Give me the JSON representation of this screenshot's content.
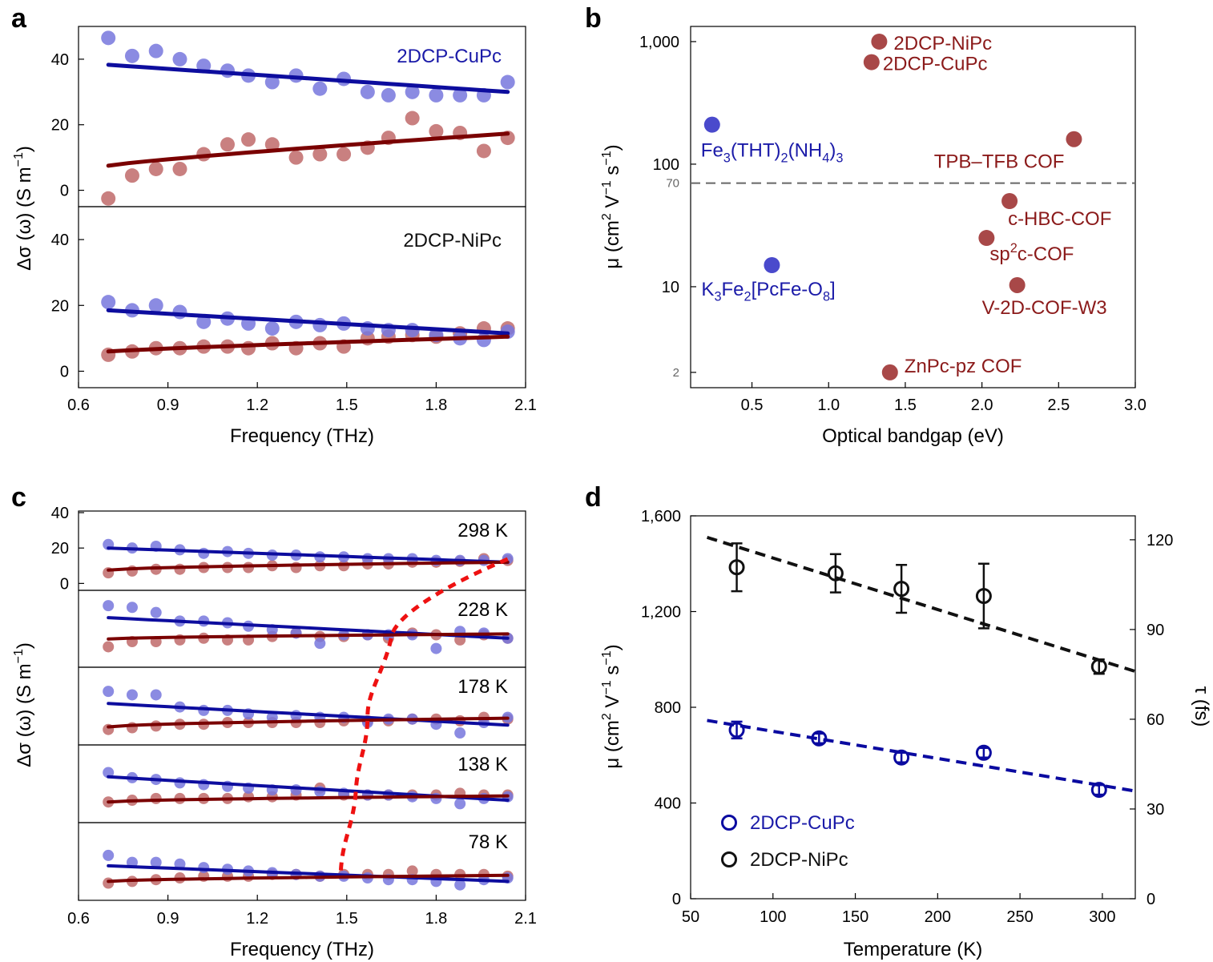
{
  "colors": {
    "blue_line": "#0d0d9e",
    "blue_dot": "#7777dd",
    "red_line": "#7a0000",
    "red_dot": "#c06a6a",
    "blue_text": "#1a1aa8",
    "red_text": "#8b1a1a",
    "dashed_red": "#ee1111",
    "dashed_gray": "#666666",
    "dashed_blue": "#0a0aa0",
    "black": "#111111"
  },
  "chart_data": [
    {
      "panel": "a",
      "type": "scatter",
      "xlabel": "Frequency (THz)",
      "ylabel_main": "Δσ (ω) (S m",
      "ylabel_sup": "−1",
      "ylabel_close": ")",
      "xlim": [
        0.6,
        2.1
      ],
      "xticks": [
        "0.6",
        "0.9",
        "1.2",
        "1.5",
        "1.8",
        "2.1"
      ],
      "x": [
        0.7,
        0.78,
        0.86,
        0.94,
        1.02,
        1.1,
        1.17,
        1.25,
        1.33,
        1.41,
        1.49,
        1.57,
        1.64,
        1.72,
        1.8,
        1.88,
        1.96,
        2.04
      ],
      "subplots": [
        {
          "label": "2DCP-CuPc",
          "ylim": [
            -5,
            50
          ],
          "yticks": [
            "0",
            "20",
            "40"
          ],
          "series": [
            {
              "name": "real",
              "color": "blue",
              "values": [
                46.5,
                41,
                42.5,
                40,
                38,
                36.5,
                35,
                33,
                35,
                31,
                34,
                30,
                29,
                30,
                29,
                29,
                29,
                33
              ],
              "fit": [
                38.3,
                30.0
              ]
            },
            {
              "name": "imaginary",
              "color": "red",
              "values": [
                -2.5,
                4.5,
                6.5,
                6.5,
                11,
                14,
                15.5,
                14,
                10,
                11,
                11,
                13,
                16,
                22,
                18,
                17.5,
                12,
                16
              ],
              "fit": [
                7.5,
                17.3
              ]
            }
          ]
        },
        {
          "label": "2DCP-NiPc",
          "ylim": [
            -5,
            50
          ],
          "yticks": [
            "0",
            "20",
            "40"
          ],
          "series": [
            {
              "name": "real",
              "color": "blue",
              "values": [
                21,
                18.5,
                20,
                18,
                15,
                16,
                14.5,
                13,
                15,
                14,
                14.5,
                13,
                12.5,
                12.5,
                11,
                10,
                9.5,
                12
              ],
              "fit": [
                18.5,
                11.5
              ]
            },
            {
              "name": "imaginary",
              "color": "red",
              "values": [
                5,
                6,
                7,
                7,
                7.5,
                7.5,
                7,
                8.5,
                7,
                8.5,
                7.5,
                10,
                10.5,
                11,
                10.5,
                11.5,
                13,
                13
              ],
              "fit": [
                6.0,
                10.5
              ]
            }
          ]
        }
      ]
    },
    {
      "panel": "b",
      "type": "scatter",
      "xlabel": "Optical bandgap (eV)",
      "ylabel_main": "μ (cm",
      "ylabel_rest": " V",
      "ylabel_rest2": " s",
      "ylabel_close": ")",
      "xlim": [
        0.1,
        3.0
      ],
      "xticks": [
        "0.5",
        "1.0",
        "1.5",
        "2.0",
        "2.5",
        "3.0"
      ],
      "yscale": "log",
      "ylim": [
        1.5,
        1500
      ],
      "yticks": [
        "2",
        "10",
        "70",
        "100",
        "1,000"
      ],
      "threshold": 70,
      "points": [
        {
          "x": 1.33,
          "y": 1000,
          "label": "2DCP-NiPc",
          "color": "red"
        },
        {
          "x": 1.28,
          "y": 680,
          "label": "2DCP-CuPc",
          "color": "red"
        },
        {
          "x": 0.24,
          "y": 210,
          "label_main": "Fe",
          "label_parts": [
            "Fe",
            "3",
            "(THT)",
            "2",
            "(NH",
            "4",
            ")",
            "3"
          ],
          "color": "blue"
        },
        {
          "x": 2.6,
          "y": 160,
          "label": "TPB–TFB  COF",
          "color": "red"
        },
        {
          "x": 2.18,
          "y": 50,
          "label": "c-HBC-COF",
          "color": "red"
        },
        {
          "x": 2.03,
          "y": 25,
          "label_parts": [
            "sp",
            "2",
            "c-COF"
          ],
          "color": "red"
        },
        {
          "x": 0.63,
          "y": 15,
          "label_parts": [
            "K",
            "3",
            "Fe",
            "2",
            "[PcFe-O",
            "8",
            "]"
          ],
          "color": "blue"
        },
        {
          "x": 2.23,
          "y": 10.3,
          "label": "V-2D-COF-W3",
          "color": "red"
        },
        {
          "x": 1.4,
          "y": 2.0,
          "label": "ZnPc-pz COF",
          "color": "red"
        }
      ]
    },
    {
      "panel": "c",
      "type": "scatter",
      "xlabel": "Frequency (THz)",
      "ylabel_main": "Δσ (ω) (S m",
      "ylabel_sup": "−1",
      "ylabel_close": ")",
      "xlim": [
        0.6,
        2.1
      ],
      "xticks": [
        "0.6",
        "0.9",
        "1.2",
        "1.5",
        "1.8",
        "2.1"
      ],
      "yticks_top": [
        "0",
        "20",
        "40"
      ],
      "ylim": [
        -3,
        40
      ],
      "x": [
        0.7,
        0.78,
        0.86,
        0.94,
        1.02,
        1.1,
        1.17,
        1.25,
        1.33,
        1.41,
        1.49,
        1.57,
        1.64,
        1.72,
        1.8,
        1.88,
        1.96,
        2.04
      ],
      "crossover_x": [
        2.04,
        1.65,
        1.57,
        1.53,
        1.48
      ],
      "subplots": [
        {
          "label": "298 K",
          "series": [
            {
              "name": "real",
              "color": "blue",
              "values": [
                22,
                20,
                21,
                19,
                17,
                18,
                17,
                16,
                16,
                15,
                15,
                14,
                14,
                14,
                13,
                13,
                13,
                14
              ],
              "fit": [
                20.0,
                12.0
              ]
            },
            {
              "name": "imaginary",
              "color": "red",
              "values": [
                6,
                7,
                8,
                8,
                9,
                9,
                9,
                10,
                9,
                10,
                10,
                11,
                11,
                12,
                12,
                12.5,
                14,
                13
              ],
              "fit": [
                7.5,
                12.0
              ]
            }
          ]
        },
        {
          "label": "228 K",
          "series": [
            {
              "name": "real",
              "color": "blue",
              "values": [
                32,
                31,
                28,
                23,
                23,
                22,
                20,
                18,
                16,
                10,
                15,
                15,
                15,
                15,
                7,
                17,
                16,
                13
              ],
              "fit": [
                25.0,
                13.0
              ]
            },
            {
              "name": "imaginary",
              "color": "red",
              "values": [
                8,
                11,
                11,
                12,
                13,
                12,
                12,
                14,
                16,
                14,
                14,
                15,
                13,
                16,
                15,
                12,
                15,
                13
              ],
              "fit": [
                12.5,
                15.5
              ]
            }
          ]
        },
        {
          "label": "178 K",
          "series": [
            {
              "name": "real",
              "color": "blue",
              "values": [
                27,
                25,
                25,
                18,
                16,
                16,
                14,
                12,
                13,
                12,
                12,
                9,
                11,
                11,
                8,
                3,
                9,
                12
              ],
              "fit": [
                20.0,
                7.5
              ]
            },
            {
              "name": "imaginary",
              "color": "red",
              "values": [
                5,
                6,
                7,
                8,
                8,
                9,
                9,
                9,
                9,
                9,
                10,
                10,
                10,
                11,
                11,
                10,
                12,
                11
              ],
              "fit": [
                6.5,
                11.5
              ]
            }
          ]
        },
        {
          "label": "138 K",
          "series": [
            {
              "name": "real",
              "color": "blue",
              "values": [
                25,
                22,
                21,
                19,
                18,
                17,
                16,
                15,
                15,
                14,
                13,
                12,
                12,
                11,
                10,
                7,
                10,
                11
              ],
              "fit": [
                22.5,
                9.0
              ]
            },
            {
              "name": "imaginary",
              "color": "red",
              "values": [
                8,
                9,
                10,
                10,
                10,
                10,
                11,
                11,
                12,
                16,
                12,
                12,
                12,
                12,
                12,
                13,
                12,
                12
              ],
              "fit": [
                8.0,
                11.5
              ]
            }
          ]
        },
        {
          "label": "78 K",
          "series": [
            {
              "name": "real",
              "color": "blue",
              "values": [
                22,
                18,
                18,
                17,
                15,
                14,
                13,
                12,
                11,
                10,
                10,
                9,
                8,
                8,
                7,
                5,
                8,
                9
              ],
              "fit": [
                16.0,
                7.0
              ]
            },
            {
              "name": "imaginary",
              "color": "red",
              "values": [
                6,
                7,
                8,
                9,
                10,
                10,
                10,
                11,
                11,
                10,
                11,
                11,
                11,
                13,
                11,
                11,
                11,
                10
              ],
              "fit": [
                7.0,
                10.5
              ]
            }
          ]
        }
      ]
    },
    {
      "panel": "d",
      "type": "scatter",
      "xlabel": "Temperature (K)",
      "ylabel_main": "μ (cm",
      "ylabel_rest": " V",
      "ylabel_rest2": " s",
      "ylabel_close": ")",
      "ylabel_right": "τ (fs)",
      "xlim": [
        50,
        320
      ],
      "xticks": [
        "50",
        "100",
        "150",
        "200",
        "250",
        "300"
      ],
      "ylim": [
        0,
        1600
      ],
      "yticks": [
        "0",
        "400",
        "800",
        "1,200",
        "1,600"
      ],
      "ylim_right": [
        0,
        128
      ],
      "yticks_right": [
        "0",
        "30",
        "60",
        "90",
        "120"
      ],
      "series": [
        {
          "name": "2DCP-CuPc",
          "color": "blue",
          "x": [
            78,
            128,
            178,
            228,
            298
          ],
          "y": [
            705,
            670,
            590,
            610,
            455
          ],
          "err": [
            35,
            20,
            20,
            20,
            20
          ],
          "fit_x": [
            60,
            320
          ],
          "fit_y": [
            745,
            450
          ]
        },
        {
          "name": "2DCP-NiPc",
          "color": "black",
          "x": [
            78,
            138,
            178,
            228,
            298
          ],
          "y": [
            1385,
            1360,
            1295,
            1265,
            970
          ],
          "err": [
            100,
            80,
            100,
            135,
            30
          ],
          "fit_x": [
            60,
            320
          ],
          "fit_y": [
            1510,
            950
          ]
        }
      ],
      "legend": [
        "2DCP-CuPc",
        "2DCP-NiPc"
      ]
    }
  ],
  "panel_labels": [
    "a",
    "b",
    "c",
    "d"
  ]
}
